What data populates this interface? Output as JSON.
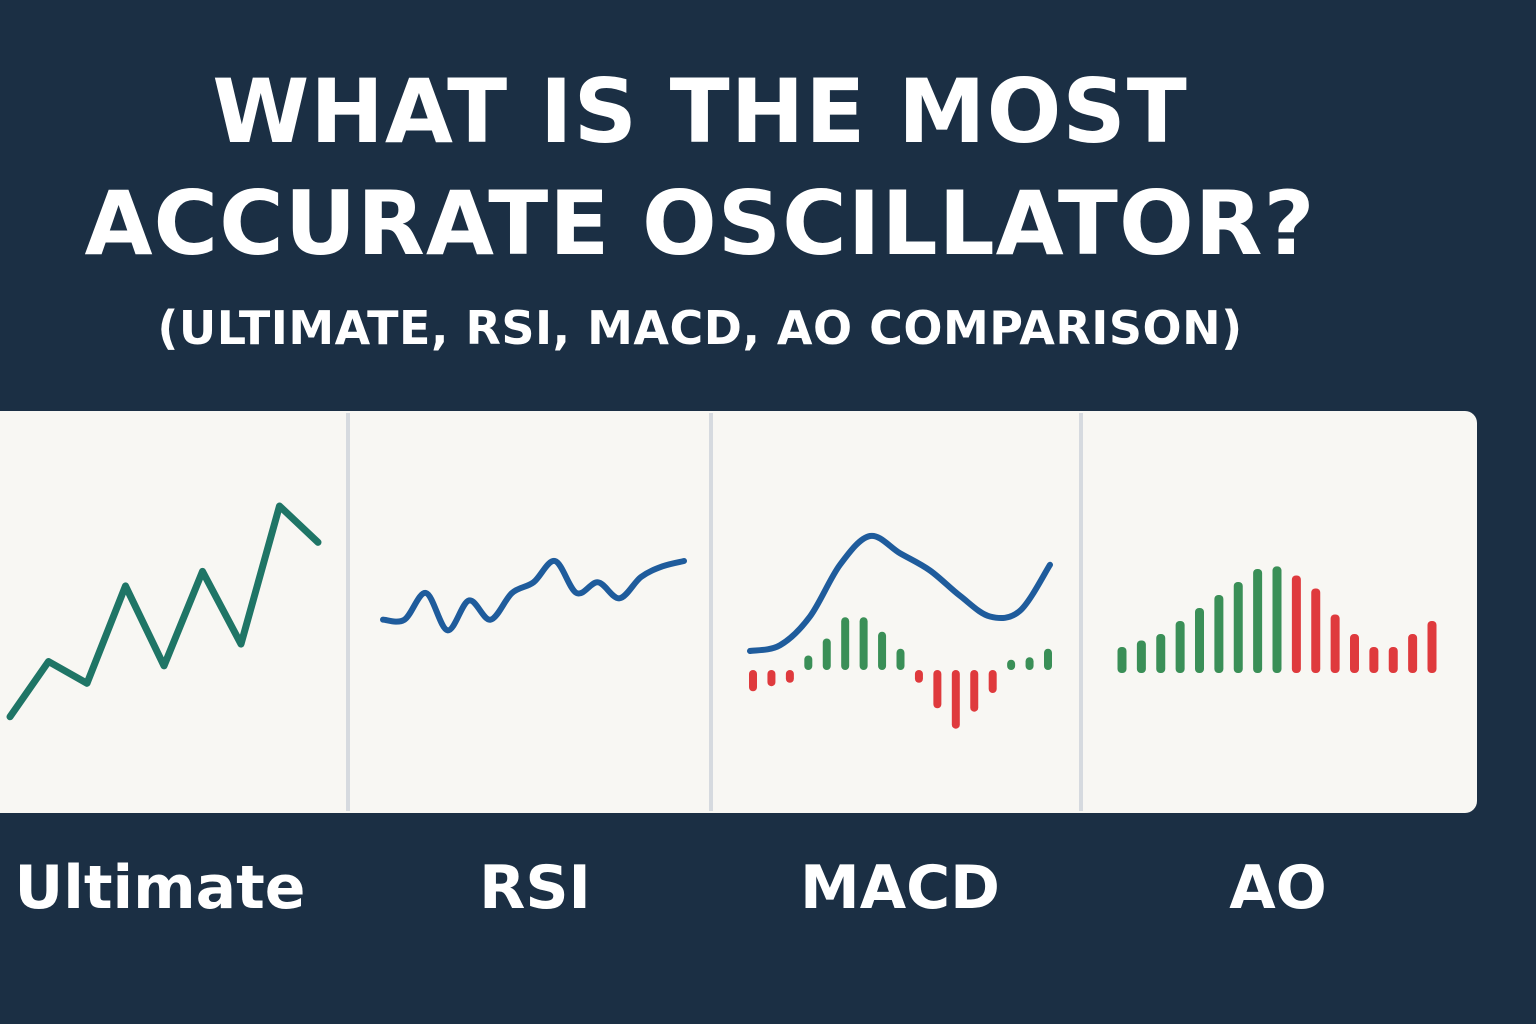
{
  "title": {
    "line1": "WHAT IS THE MOST",
    "line2": "ACCURATE OSCILLATOR?"
  },
  "subtitle": "(ULTIMATE, RSI, MACD, AO COMPARISON)",
  "colors": {
    "background": "#1b2f44",
    "panel": "#f8f7f3",
    "ultimate_line": "#1f7566",
    "rsi_line": "#1f5c9c",
    "macd_line": "#1f5c9c",
    "positive_bar": "#3a8f57",
    "negative_bar": "#df3a3d"
  },
  "chart_data": [
    {
      "type": "line",
      "name": "Ultimate",
      "x": [
        0,
        1,
        2,
        3,
        4,
        5,
        6,
        7,
        8
      ],
      "values": [
        5,
        43,
        28,
        95,
        40,
        105,
        55,
        150,
        125
      ],
      "label": "Ultimate"
    },
    {
      "type": "line",
      "name": "RSI",
      "x": [
        0,
        1,
        2,
        3,
        4,
        5,
        6,
        7,
        8,
        9,
        10,
        11,
        12,
        13,
        14
      ],
      "values": [
        20,
        20,
        45,
        10,
        38,
        20,
        45,
        55,
        75,
        45,
        55,
        40,
        60,
        70,
        75
      ],
      "label": "RSI"
    },
    {
      "type": "bar",
      "name": "MACD",
      "histogram": [
        -18,
        -12,
        -8,
        10,
        30,
        55,
        55,
        38,
        18,
        -8,
        -38,
        -62,
        -42,
        -20,
        5,
        8,
        18
      ],
      "signal_line": [
        0,
        5,
        30,
        75,
        100,
        85,
        70,
        48,
        30,
        35,
        75
      ],
      "label": "MACD"
    },
    {
      "type": "bar",
      "name": "AO",
      "values": [
        20,
        25,
        30,
        40,
        50,
        60,
        70,
        80,
        82,
        75,
        65,
        45,
        30,
        20,
        20,
        30,
        40
      ],
      "positive_until_index": 8,
      "label": "AO"
    }
  ]
}
